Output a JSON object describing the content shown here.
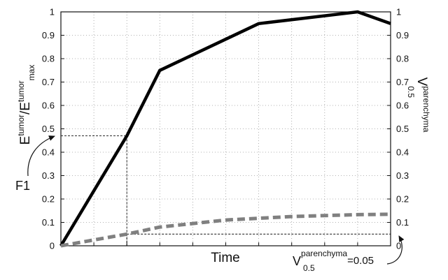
{
  "chart_data": {
    "type": "line",
    "x_categories": [
      "",
      "",
      "",
      "",
      "",
      "",
      "",
      "",
      "",
      "",
      ""
    ],
    "xlabel": "Time",
    "ylabel_left": {
      "base": "E",
      "sup1": "tumor",
      "slash": "/E",
      "sup2": "tumor",
      "sub2": "max"
    },
    "ylabel_right": {
      "base": "V",
      "sup": "parenchyma",
      "sub": "0.5"
    },
    "ylim": [
      0,
      1
    ],
    "y_ticks": [
      "0",
      "0.1",
      "0.2",
      "0.3",
      "0.4",
      "0.5",
      "0.6",
      "0.7",
      "0.8",
      "0.9",
      "1"
    ],
    "y_tick_values": [
      0,
      0.1,
      0.2,
      0.3,
      0.4,
      0.5,
      0.6,
      0.7,
      0.8,
      0.9,
      1
    ],
    "grid": true,
    "series": [
      {
        "style": "solid",
        "color": "#000000",
        "x": [
          0,
          0.2,
          0.3,
          0.6,
          0.9,
          1.0
        ],
        "y": [
          0,
          0.47,
          0.75,
          0.95,
          1.0,
          0.95
        ]
      },
      {
        "style": "dashed",
        "color": "#808080",
        "x": [
          0,
          0.2,
          0.3,
          0.5,
          0.7,
          0.9,
          1.0
        ],
        "y": [
          0,
          0.05,
          0.08,
          0.11,
          0.125,
          0.133,
          0.135
        ]
      }
    ],
    "guides": [
      {
        "x": 0.2,
        "y": 0.47,
        "axis": "left"
      },
      {
        "x": 0.2,
        "y": 0.05,
        "axis": "right"
      }
    ],
    "annotations": {
      "f1_label": "F1",
      "bottom": {
        "base": "V",
        "sup": "parenchyma",
        "sub": "0.5",
        "suffix": "=0.05"
      }
    }
  }
}
